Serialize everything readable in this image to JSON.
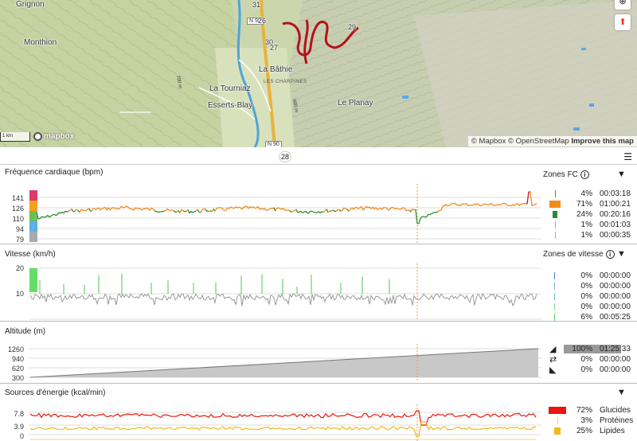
{
  "map": {
    "places": {
      "monthion": "Monthion",
      "la_bathie": "La Bâthie",
      "la_tourniaz": "La Tourniaz",
      "esserts_blay": "Esserts-Blay",
      "le_planay": "Le Planay",
      "les_charpines": "LES CHARPINES",
      "grignon": "Grignon"
    },
    "road_labels": [
      "N 90",
      "N 90"
    ],
    "km_markers": [
      "31",
      "26",
      "30",
      "27",
      "29"
    ],
    "contour_labels": [
      "700 m",
      "900 m"
    ],
    "scale_label": "1 km",
    "logo_text": "mapbox",
    "attribution": "© Mapbox © OpenStreetMap",
    "improve_link": "Improve this map",
    "controls": [
      "compass-icon",
      "north-arrow-icon"
    ]
  },
  "timeline": {
    "marker_value": "28",
    "settings_icon": "sliders-icon"
  },
  "heart": {
    "title": "Fréquence cardiaque (bpm)",
    "y_ticks": [
      "141",
      "126",
      "110",
      "94",
      "79"
    ],
    "zones_title": "Zones FC",
    "zones": [
      {
        "pct": "4%",
        "time": "00:03:18",
        "color": "#d9493b"
      },
      {
        "pct": "71%",
        "time": "01:00:21",
        "color": "#f28a1c"
      },
      {
        "pct": "24%",
        "time": "00:20:16",
        "color": "#2e8a2e"
      },
      {
        "pct": "1%",
        "time": "00:01:03",
        "color": "#6fb7e6"
      },
      {
        "pct": "1%",
        "time": "00:00:35",
        "color": "#aaaaaa"
      }
    ],
    "zone_bar_colors": [
      "#e03a6e",
      "#f2a21c",
      "#6cc04a",
      "#5aaee6",
      "#aaaaaa"
    ]
  },
  "speed": {
    "title": "Vitesse (km/h)",
    "y_ticks": [
      "20",
      "10"
    ],
    "zones_title": "Zones de vitesse",
    "zones": [
      {
        "pct": "0%",
        "time": "00:00:00",
        "color": "#4a7fc8"
      },
      {
        "pct": "0%",
        "time": "00:00:00",
        "color": "#6fb7e6"
      },
      {
        "pct": "0%",
        "time": "00:00:00",
        "color": "#57c2c2"
      },
      {
        "pct": "0%",
        "time": "00:00:00",
        "color": "#8fd4a8"
      },
      {
        "pct": "6%",
        "time": "00:05:25",
        "color": "#57d66b"
      }
    ]
  },
  "altitude": {
    "title": "Altitude (m)",
    "y_ticks": [
      "1260",
      "940",
      "620",
      "300"
    ],
    "rows": [
      {
        "icon": "uphill-icon",
        "pct": "100%",
        "time": "01:25:33"
      },
      {
        "icon": "flat-icon",
        "pct": "0%",
        "time": "00:00:00"
      },
      {
        "icon": "downhill-icon",
        "pct": "0%",
        "time": "00:00:00"
      }
    ]
  },
  "energy": {
    "title": "Sources d'énergie (kcal/min)",
    "y_ticks": [
      "7.8",
      "3.9",
      "0"
    ],
    "sources": [
      {
        "pct": "72%",
        "label": "Glucides",
        "color": "#e8160c"
      },
      {
        "pct": "3%",
        "label": "Protéines",
        "color": "#f5d36b"
      },
      {
        "pct": "25%",
        "label": "Lipides",
        "color": "#f2b81c"
      }
    ]
  },
  "colors": {
    "grid": "#dddddd",
    "cursor": "#e6a23c",
    "speed_line": "#999999",
    "speed_high": "#44cc44",
    "alt_fill": "#c8c8c8",
    "alt_line": "#777777"
  }
}
